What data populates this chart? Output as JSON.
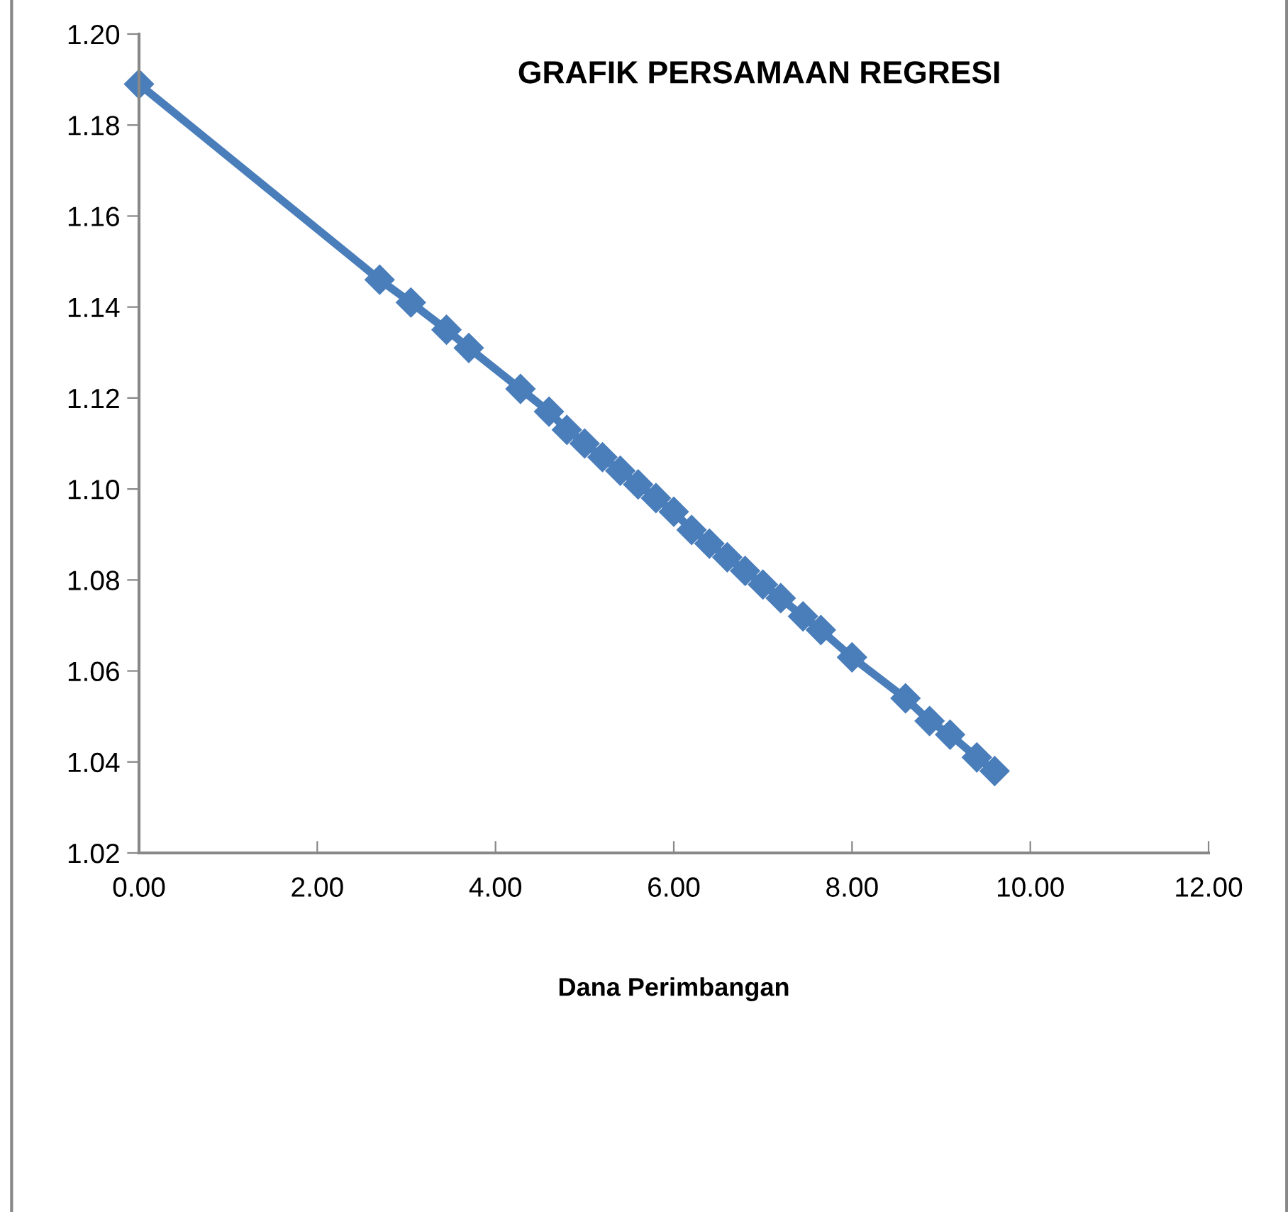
{
  "chart_data": {
    "type": "line",
    "title": "GRAFIK PERSAMAAN REGRESI",
    "xlabel": "Dana Perimbangan",
    "x": [
      0,
      2.7,
      3.05,
      3.45,
      3.7,
      4.28,
      4.6,
      4.8,
      5.0,
      5.2,
      5.4,
      5.6,
      5.8,
      6.0,
      6.2,
      6.4,
      6.6,
      6.8,
      7.0,
      7.2,
      7.45,
      7.65,
      8.0,
      8.6,
      8.87,
      9.1,
      9.4,
      9.6
    ],
    "series": [
      {
        "color": "#4a7ebb",
        "values": [
          1.189,
          1.146,
          1.141,
          1.135,
          1.131,
          1.122,
          1.117,
          1.113,
          1.11,
          1.107,
          1.104,
          1.101,
          1.098,
          1.095,
          1.091,
          1.088,
          1.085,
          1.082,
          1.079,
          1.076,
          1.072,
          1.069,
          1.063,
          1.054,
          1.049,
          1.046,
          1.041,
          1.038
        ]
      }
    ],
    "xlim": [
      0,
      12
    ],
    "xticks": [
      {
        "value": 0,
        "label": "0.00"
      },
      {
        "value": 2,
        "label": "2.00"
      },
      {
        "value": 4,
        "label": "4.00"
      },
      {
        "value": 6,
        "label": "6.00"
      },
      {
        "value": 8,
        "label": "8.00"
      },
      {
        "value": 10,
        "label": "10.00"
      },
      {
        "value": 12,
        "label": "12.00"
      }
    ],
    "ylim": [
      1.02,
      1.2
    ],
    "yticks": [
      {
        "value": 1.02,
        "label": "1.02"
      },
      {
        "value": 1.04,
        "label": "1.04"
      },
      {
        "value": 1.06,
        "label": "1.06"
      },
      {
        "value": 1.08,
        "label": "1.08"
      },
      {
        "value": 1.1,
        "label": "1.10"
      },
      {
        "value": 1.12,
        "label": "1.12"
      },
      {
        "value": 1.14,
        "label": "1.14"
      },
      {
        "value": 1.16,
        "label": "1.16"
      },
      {
        "value": 1.18,
        "label": "1.18"
      },
      {
        "value": 1.2,
        "label": "1.20"
      }
    ],
    "grid": false,
    "legend": false,
    "marker": "diamond",
    "line_style": "solid"
  }
}
